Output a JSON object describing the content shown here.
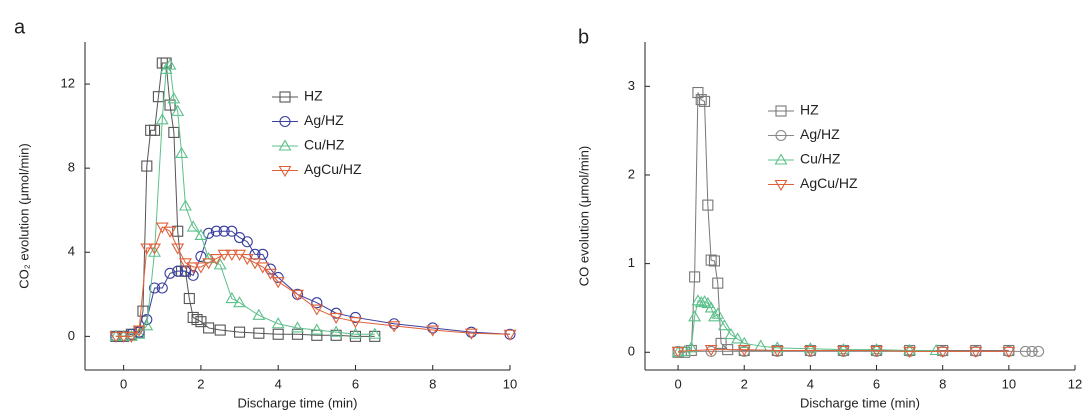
{
  "chart_data": [
    {
      "type": "line",
      "panel_label": "a",
      "x_label": "Discharge time (min)",
      "y_label": "CO₂ evolution (μmol/min)",
      "xlim": [
        -1,
        10
      ],
      "ylim": [
        -1.6,
        14
      ],
      "xticks": [
        0,
        2,
        4,
        6,
        8,
        10
      ],
      "yticks": [
        0,
        4,
        8,
        12
      ],
      "series": [
        {
          "name": "HZ",
          "color": "#555555",
          "marker": "square",
          "x": [
            -0.2,
            0,
            0.2,
            0.4,
            0.5,
            0.6,
            0.7,
            0.8,
            0.9,
            1.0,
            1.1,
            1.2,
            1.3,
            1.4,
            1.5,
            1.6,
            1.7,
            1.8,
            1.9,
            2.0,
            2.2,
            2.5,
            3,
            3.5,
            4,
            4.5,
            5,
            5.5,
            6,
            6.5
          ],
          "values": [
            0,
            0,
            0.1,
            0.2,
            1.2,
            8.1,
            9.8,
            9.8,
            11.4,
            13,
            13,
            11,
            9.7,
            5,
            3.1,
            3.1,
            1.8,
            0.9,
            0.8,
            0.7,
            0.4,
            0.3,
            0.2,
            0.15,
            0.1,
            0.1,
            0.05,
            0.05,
            0,
            0
          ]
        },
        {
          "name": "Ag/HZ",
          "color": "#3a3f9e",
          "marker": "circle",
          "x": [
            -0.2,
            0,
            0.2,
            0.4,
            0.6,
            0.8,
            1,
            1.2,
            1.4,
            1.6,
            1.8,
            2,
            2.2,
            2.4,
            2.6,
            2.8,
            3,
            3.2,
            3.4,
            3.6,
            3.8,
            4,
            4.5,
            5,
            5.5,
            6,
            7,
            8,
            9,
            10
          ],
          "values": [
            0,
            0,
            0.1,
            0.2,
            0.8,
            2.3,
            2.3,
            3,
            3.1,
            3.1,
            2.9,
            3.8,
            4.9,
            5,
            5,
            5,
            4.7,
            4.5,
            3.9,
            3.9,
            3.2,
            2.8,
            2,
            1.6,
            1.1,
            0.9,
            0.6,
            0.4,
            0.2,
            0.1
          ]
        },
        {
          "name": "Cu/HZ",
          "color": "#5cc08b",
          "marker": "triangle-up",
          "x": [
            -0.2,
            0,
            0.2,
            0.4,
            0.6,
            0.8,
            1,
            1.1,
            1.2,
            1.3,
            1.4,
            1.5,
            1.6,
            1.8,
            2,
            2.2,
            2.5,
            2.8,
            3,
            3.5,
            4,
            4.5,
            5,
            5.5,
            6,
            6.5
          ],
          "values": [
            0,
            0,
            0,
            0.1,
            0.5,
            4,
            10.3,
            12.7,
            12.9,
            11.3,
            10.7,
            8.7,
            6.2,
            5.2,
            4.8,
            3.7,
            3.4,
            1.8,
            1.6,
            1,
            0.6,
            0.4,
            0.3,
            0.2,
            0.1,
            0.1
          ]
        },
        {
          "name": "AgCu/HZ",
          "color": "#e0603a",
          "marker": "triangle-down",
          "x": [
            -0.2,
            0,
            0.2,
            0.4,
            0.6,
            0.8,
            1,
            1.2,
            1.4,
            1.6,
            1.8,
            2,
            2.2,
            2.4,
            2.6,
            2.8,
            3,
            3.2,
            3.4,
            3.6,
            3.8,
            4,
            4.5,
            5,
            5.5,
            6,
            7,
            8,
            9,
            10
          ],
          "values": [
            0,
            0,
            0,
            0.3,
            4.2,
            4.2,
            5.2,
            5,
            4.2,
            3.5,
            3.3,
            3.3,
            3.5,
            3.7,
            3.9,
            3.9,
            3.9,
            3.7,
            3.5,
            3.3,
            3,
            2.6,
            2,
            1.3,
            0.9,
            0.7,
            0.5,
            0.3,
            0.15,
            0.1
          ]
        }
      ]
    },
    {
      "type": "line",
      "panel_label": "b",
      "x_label": "Discharge time (min)",
      "y_label": "CO evolution (μmol/min)",
      "xlim": [
        -1,
        12
      ],
      "ylim": [
        -0.2,
        3.5
      ],
      "xticks": [
        0,
        2,
        4,
        6,
        8,
        10,
        12
      ],
      "yticks": [
        0,
        1,
        2,
        3
      ],
      "series": [
        {
          "name": "HZ",
          "color": "#777777",
          "marker": "square",
          "x": [
            0,
            0.2,
            0.4,
            0.5,
            0.6,
            0.7,
            0.8,
            0.9,
            1.0,
            1.1,
            1.2,
            1.3,
            1.5,
            2,
            3,
            4,
            5,
            6,
            7,
            8,
            9,
            10
          ],
          "values": [
            0,
            0,
            0.02,
            0.85,
            2.93,
            2.85,
            2.83,
            1.66,
            1.04,
            1.03,
            0.78,
            0.1,
            0.03,
            0.02,
            0.02,
            0.02,
            0.02,
            0.02,
            0.02,
            0.02,
            0.02,
            0.02
          ]
        },
        {
          "name": "Ag/HZ",
          "color": "#888888",
          "marker": "circle",
          "x": [
            0,
            1,
            2,
            3,
            4,
            5,
            6,
            7,
            8,
            9,
            10,
            10.5,
            10.7,
            10.9
          ],
          "values": [
            0.01,
            0.01,
            0.01,
            0.01,
            0.01,
            0.01,
            0.01,
            0.01,
            0.01,
            0.01,
            0.01,
            0.01,
            0.01,
            0.01
          ]
        },
        {
          "name": "Cu/HZ",
          "color": "#5cc08b",
          "marker": "triangle-up",
          "x": [
            0,
            0.2,
            0.4,
            0.5,
            0.6,
            0.7,
            0.8,
            0.9,
            1,
            1.1,
            1.2,
            1.4,
            1.6,
            1.8,
            2,
            2.5,
            3,
            4,
            5,
            6,
            7,
            7.8
          ],
          "values": [
            0,
            0.01,
            0.05,
            0.4,
            0.58,
            0.56,
            0.57,
            0.55,
            0.5,
            0.4,
            0.43,
            0.3,
            0.2,
            0.15,
            0.1,
            0.07,
            0.05,
            0.04,
            0.03,
            0.03,
            0.02,
            0.02
          ]
        },
        {
          "name": "AgCu/HZ",
          "color": "#e0603a",
          "marker": "triangle-down",
          "x": [
            0,
            1,
            2,
            3,
            4,
            5,
            6,
            7,
            8,
            9,
            10
          ],
          "values": [
            0.01,
            0.03,
            0.03,
            0.02,
            0.02,
            0.02,
            0.02,
            0.01,
            0.01,
            0.01,
            0.01
          ]
        }
      ]
    }
  ]
}
